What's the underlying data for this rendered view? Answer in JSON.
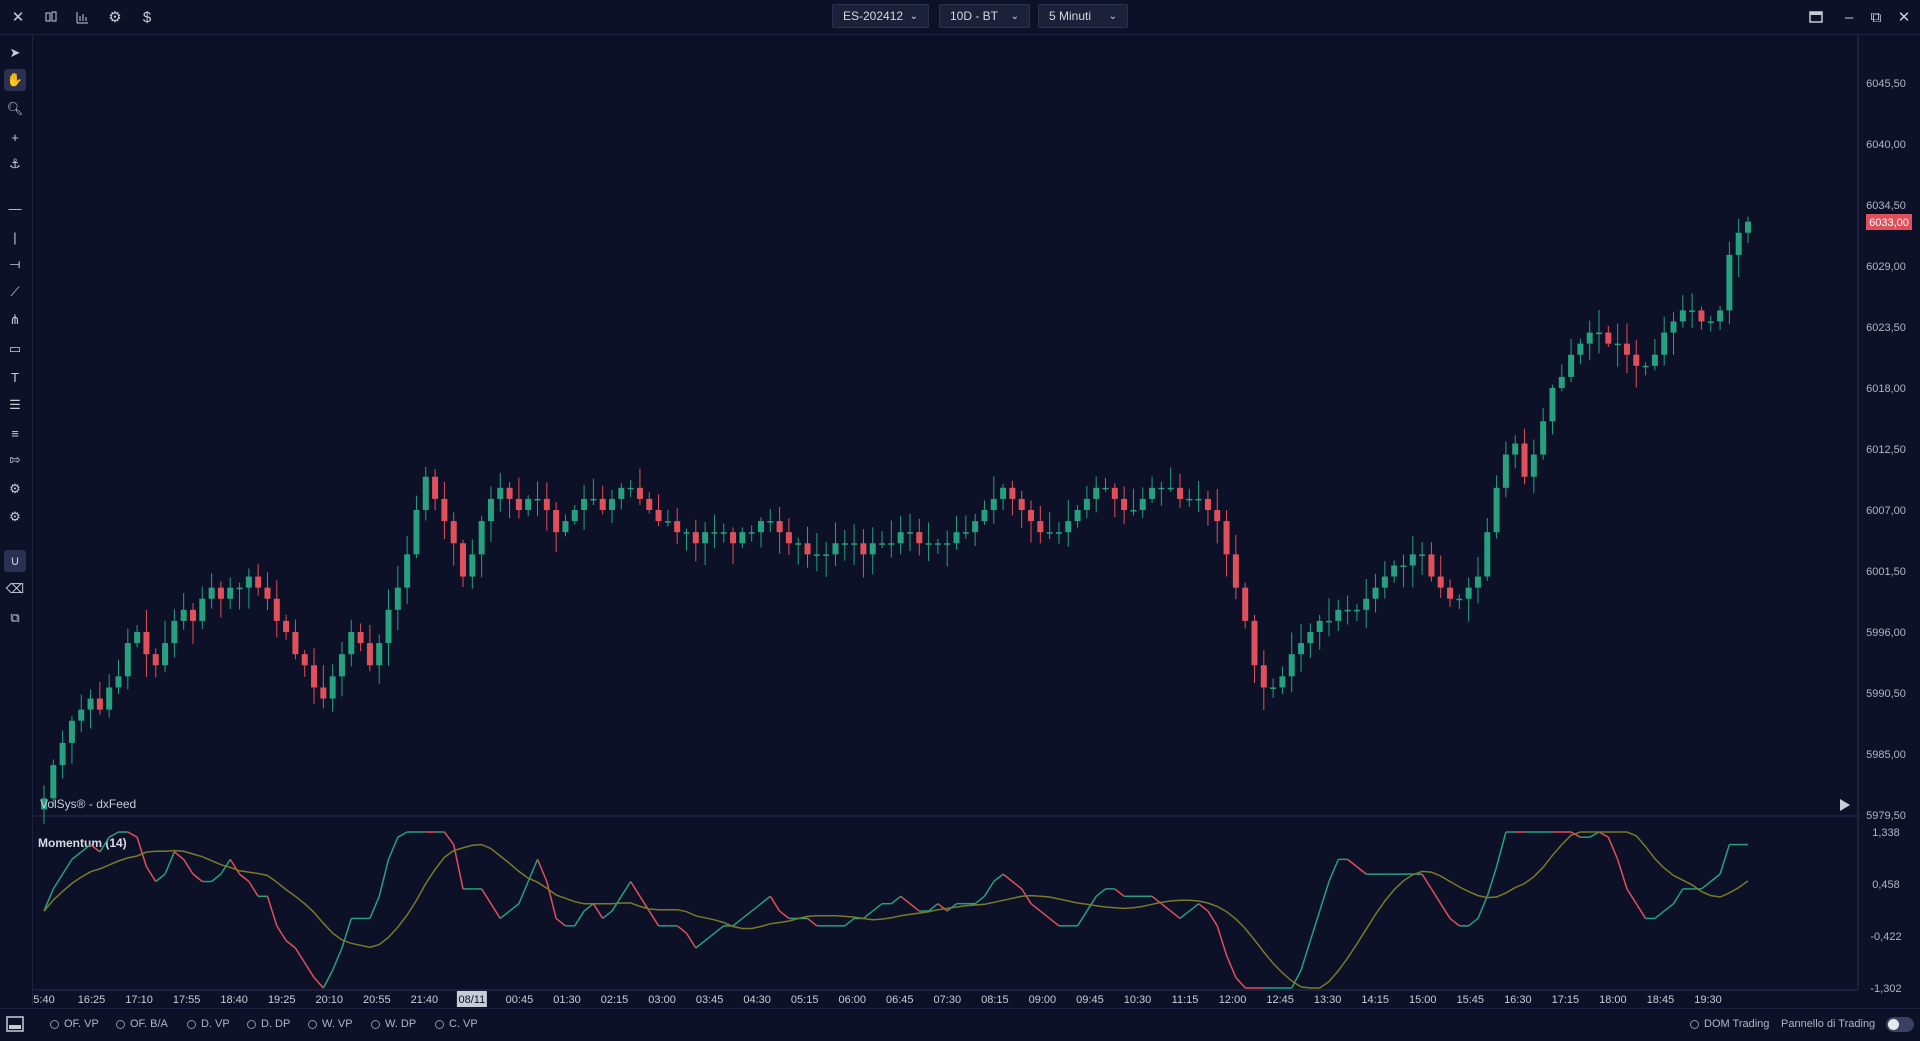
{
  "colors": {
    "background": "#0c1127",
    "bull": "#26a07e",
    "bear": "#e0505a",
    "price_tag": "#e0505a",
    "momentum_signal": "#7a7a2a",
    "grid": "#1c2340"
  },
  "topbar": {
    "icons": [
      "close-icon",
      "candles-icon",
      "bars-icon",
      "settings-icon",
      "dollar-icon"
    ],
    "symbol": "ES-202412",
    "period": "10D - BT",
    "timeframe": "5 Minuti",
    "window_icons": [
      "layout-icon",
      "minimize-icon",
      "restore-icon",
      "close-window-icon"
    ]
  },
  "toolbar": {
    "tools": [
      "cursor-icon",
      "hand-icon",
      "zoom-icon",
      "crosshair-icon",
      "magnet-icon",
      "horizontal-line-icon",
      "vertical-line-icon",
      "ray-icon",
      "trendline-icon",
      "pitchfork-icon",
      "rectangle-icon",
      "text-icon",
      "fib-icon",
      "levels-icon",
      "arrow-icon",
      "settings-doc-icon",
      "gear-doc-icon",
      "magnet-active-icon",
      "eraser-icon",
      "layers-icon"
    ]
  },
  "chart": {
    "feed_label": "VolSys® - dxFeed",
    "current_price": "6033,00",
    "price_axis": [
      "6045,50",
      "6040,00",
      "6034,50",
      "6029,00",
      "6023,50",
      "6018,00",
      "6012,50",
      "6007,00",
      "6001,50",
      "5996,00",
      "5990,50",
      "5985,00",
      "5979,50"
    ],
    "time_axis": [
      "5:40",
      "16:25",
      "17:10",
      "17:55",
      "18:40",
      "19:25",
      "20:10",
      "20:55",
      "21:40",
      "08/11",
      "00:45",
      "01:30",
      "02:15",
      "03:00",
      "03:45",
      "04:30",
      "05:15",
      "06:00",
      "06:45",
      "07:30",
      "08:15",
      "09:00",
      "09:45",
      "10:30",
      "11:15",
      "12:00",
      "12:45",
      "13:30",
      "14:15",
      "15:00",
      "15:45",
      "16:30",
      "17:15",
      "18:00",
      "18:45",
      "19:30"
    ],
    "highlighted_time": "08/11"
  },
  "chart_data": {
    "type": "candlestick",
    "symbol": "ES-202412",
    "interval": "5 Minuti",
    "ylim": [
      5979.5,
      6045.5
    ],
    "closes": [
      5981,
      5984,
      5986,
      5988,
      5989,
      5990,
      5989,
      5991,
      5992,
      5995,
      5996,
      5994,
      5993,
      5995,
      5997,
      5998,
      5997,
      5999,
      6000,
      5999,
      6000,
      6000,
      6001,
      6000,
      5999,
      5997,
      5996,
      5994,
      5993,
      5991,
      5990,
      5992,
      5994,
      5996,
      5995,
      5993,
      5995,
      5998,
      6000,
      6003,
      6007,
      6010,
      6008,
      6006,
      6004,
      6001,
      6003,
      6006,
      6008,
      6009,
      6008,
      6007,
      6008,
      6008,
      6007,
      6005,
      6006,
      6007,
      6008,
      6008,
      6007,
      6008,
      6009,
      6009,
      6008,
      6007,
      6006,
      6006,
      6005,
      6005,
      6004,
      6005,
      6005,
      6005,
      6004,
      6005,
      6005,
      6006,
      6006,
      6005,
      6004,
      6004,
      6003,
      6003,
      6003,
      6004,
      6004,
      6004,
      6003,
      6004,
      6004,
      6004,
      6005,
      6005,
      6004,
      6004,
      6004,
      6004,
      6005,
      6005,
      6006,
      6007,
      6008,
      6009,
      6008,
      6007,
      6006,
      6005,
      6005,
      6005,
      6006,
      6007,
      6008,
      6009,
      6009,
      6008,
      6007,
      6007,
      6008,
      6009,
      6009,
      6009,
      6008,
      6008,
      6008,
      6007,
      6006,
      6003,
      6000,
      5997,
      5993,
      5991,
      5991,
      5992,
      5994,
      5995,
      5996,
      5997,
      5997,
      5998,
      5998,
      5998,
      5999,
      6000,
      6001,
      6002,
      6002,
      6003,
      6003,
      6001,
      6000,
      5999,
      5999,
      6000,
      6001,
      6005,
      6009,
      6012,
      6013,
      6010,
      6012,
      6015,
      6018,
      6019,
      6021,
      6022,
      6023,
      6023,
      6022,
      6022,
      6021,
      6020,
      6020,
      6021,
      6023,
      6024,
      6025,
      6025,
      6024,
      6024,
      6025,
      6030,
      6032,
      6033
    ]
  },
  "momentum": {
    "title": "Momentum (14)",
    "axis": [
      "1,338",
      "0,458",
      "-0,422",
      "-1,302"
    ],
    "ylim": [
      -1.302,
      1.338
    ]
  },
  "bottombar": {
    "overlays": [
      "OF. VP",
      "OF. B/A",
      "D. VP",
      "D. DP",
      "W. VP",
      "W. DP",
      "C. VP"
    ],
    "dom_trading": "DOM Trading",
    "panel_label": "Pannello di Trading"
  }
}
